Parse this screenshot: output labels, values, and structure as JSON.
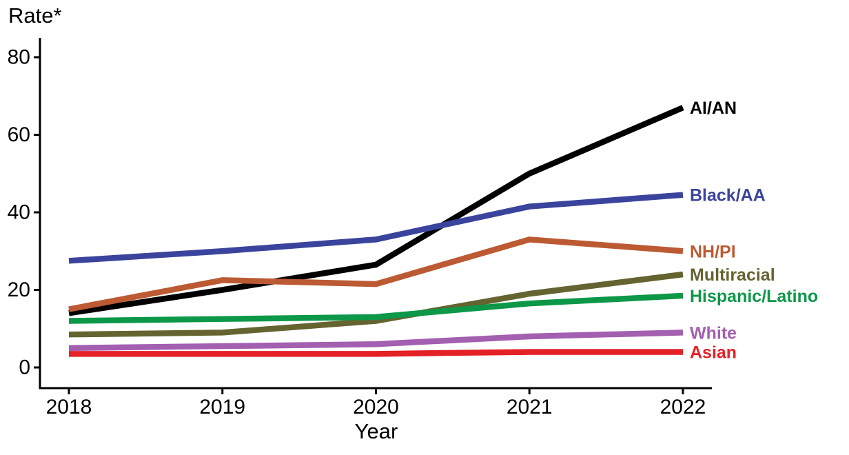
{
  "chart_data": {
    "type": "line",
    "title": "",
    "ylabel": "Rate*",
    "xlabel": "Year",
    "categories": [
      "2018",
      "2019",
      "2020",
      "2021",
      "2022"
    ],
    "y_ticks": [
      0,
      20,
      40,
      60,
      80
    ],
    "ylim": [
      0,
      80
    ],
    "grid": false,
    "legend_position": "right-end-of-line-labels",
    "axis_color": "#000000",
    "tick_label_color": "#000000",
    "series": [
      {
        "name": "AI/AN",
        "color": "#000000",
        "values": [
          14,
          20,
          26.5,
          50,
          67
        ]
      },
      {
        "name": "Black/AA",
        "color": "#3b449c",
        "values": [
          27.5,
          30,
          33,
          41.5,
          44.5
        ]
      },
      {
        "name": "NH/PI",
        "color": "#bc5a33",
        "values": [
          15,
          22.5,
          21.5,
          33,
          30
        ]
      },
      {
        "name": "Multiracial",
        "color": "#656330",
        "values": [
          8.5,
          9,
          12,
          19,
          24
        ]
      },
      {
        "name": "Hispanic/Latino",
        "color": "#0c9848",
        "values": [
          12,
          12.5,
          13,
          16.5,
          18.5
        ]
      },
      {
        "name": "White",
        "color": "#a35fb0",
        "values": [
          5,
          5.5,
          6,
          8,
          9
        ]
      },
      {
        "name": "Asian",
        "color": "#e32127",
        "values": [
          3.5,
          3.5,
          3.5,
          4,
          4
        ]
      }
    ]
  }
}
